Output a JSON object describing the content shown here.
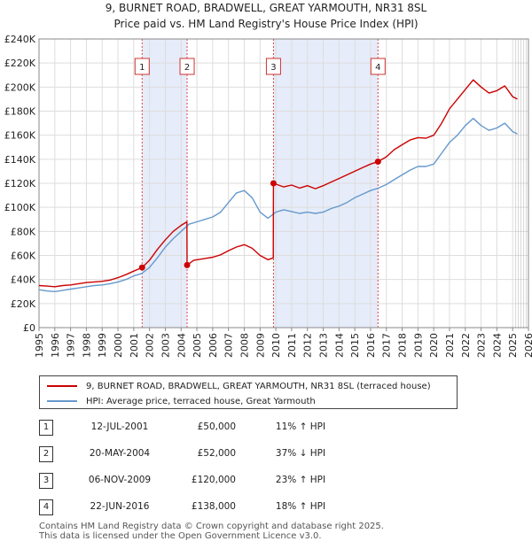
{
  "title_line1": "9, BURNET ROAD, BRADWELL, GREAT YARMOUTH, NR31 8SL",
  "title_line2": "Price paid vs. HM Land Registry's House Price Index (HPI)",
  "chart_data": {
    "type": "line",
    "title": "9, BURNET ROAD, BRADWELL, GREAT YARMOUTH, NR31 8SL",
    "subtitle": "Price paid vs. HM Land Registry's House Price Index (HPI)",
    "xlim": [
      1995,
      2026
    ],
    "ylim": [
      0,
      240000
    ],
    "y_ticks": [
      0,
      20000,
      40000,
      60000,
      80000,
      100000,
      120000,
      140000,
      160000,
      180000,
      200000,
      220000,
      240000
    ],
    "y_tick_labels": [
      "£0",
      "£20K",
      "£40K",
      "£60K",
      "£80K",
      "£100K",
      "£120K",
      "£140K",
      "£160K",
      "£180K",
      "£200K",
      "£220K",
      "£240K"
    ],
    "x_ticks": [
      1995,
      1996,
      1997,
      1998,
      1999,
      2000,
      2001,
      2002,
      2003,
      2004,
      2005,
      2006,
      2007,
      2008,
      2009,
      2010,
      2011,
      2012,
      2013,
      2014,
      2015,
      2016,
      2017,
      2018,
      2019,
      2020,
      2021,
      2022,
      2023,
      2024,
      2025,
      2026
    ],
    "x_tick_labels": [
      "1995",
      "1996",
      "1997",
      "1998",
      "1999",
      "2000",
      "2001",
      "2002",
      "2003",
      "2004",
      "2005",
      "2006",
      "2007",
      "2008",
      "2009",
      "2010",
      "2011",
      "2012",
      "2013",
      "2014",
      "2015",
      "2016",
      "2017",
      "2018",
      "2019",
      "2020",
      "2021",
      "2022",
      "2023",
      "2024",
      "2025",
      "2026"
    ],
    "grid": true,
    "series": [
      {
        "name": "9, BURNET ROAD, BRADWELL, GREAT YARMOUTH, NR31 8SL (terraced house)",
        "color": "#cc0000",
        "points": [
          [
            1995.0,
            35000
          ],
          [
            1995.5,
            34500
          ],
          [
            1996.0,
            34000
          ],
          [
            1996.5,
            35000
          ],
          [
            1997.0,
            35500
          ],
          [
            1997.5,
            36500
          ],
          [
            1998.0,
            37500
          ],
          [
            1998.5,
            38000
          ],
          [
            1999.0,
            38500
          ],
          [
            1999.5,
            39500
          ],
          [
            2000.0,
            41500
          ],
          [
            2000.5,
            44000
          ],
          [
            2001.0,
            47000
          ],
          [
            2001.53,
            50000
          ],
          [
            2002.0,
            56000
          ],
          [
            2002.5,
            65000
          ],
          [
            2003.0,
            73000
          ],
          [
            2003.5,
            80000
          ],
          [
            2004.0,
            85000
          ],
          [
            2004.37,
            88000
          ],
          [
            2004.38,
            52000
          ],
          [
            2004.8,
            56000
          ],
          [
            2005.5,
            57500
          ],
          [
            2006.0,
            58500
          ],
          [
            2006.5,
            60500
          ],
          [
            2007.0,
            64000
          ],
          [
            2007.5,
            67000
          ],
          [
            2008.0,
            69000
          ],
          [
            2008.5,
            66000
          ],
          [
            2009.0,
            60000
          ],
          [
            2009.5,
            56500
          ],
          [
            2009.84,
            58000
          ],
          [
            2009.85,
            120000
          ],
          [
            2010.5,
            117000
          ],
          [
            2011.0,
            118500
          ],
          [
            2011.5,
            116000
          ],
          [
            2012.0,
            118000
          ],
          [
            2012.5,
            115500
          ],
          [
            2013.0,
            118000
          ],
          [
            2013.5,
            121000
          ],
          [
            2014.0,
            124000
          ],
          [
            2014.5,
            127000
          ],
          [
            2015.0,
            130000
          ],
          [
            2015.5,
            133000
          ],
          [
            2016.0,
            136000
          ],
          [
            2016.47,
            138000
          ],
          [
            2017.0,
            142000
          ],
          [
            2017.5,
            148000
          ],
          [
            2018.0,
            152000
          ],
          [
            2018.5,
            156000
          ],
          [
            2019.0,
            158000
          ],
          [
            2019.5,
            157500
          ],
          [
            2020.0,
            160000
          ],
          [
            2020.5,
            170000
          ],
          [
            2021.0,
            182000
          ],
          [
            2021.5,
            190000
          ],
          [
            2022.0,
            198000
          ],
          [
            2022.5,
            206000
          ],
          [
            2023.0,
            200000
          ],
          [
            2023.5,
            195000
          ],
          [
            2024.0,
            197000
          ],
          [
            2024.5,
            201000
          ],
          [
            2025.0,
            192000
          ],
          [
            2025.3,
            190000
          ]
        ]
      },
      {
        "name": "HPI: Average price, terraced house, Great Yarmouth",
        "color": "#6699cc",
        "points": [
          [
            1995.0,
            31500
          ],
          [
            1995.5,
            30500
          ],
          [
            1996.0,
            30000
          ],
          [
            1996.5,
            31000
          ],
          [
            1997.0,
            32000
          ],
          [
            1997.5,
            33000
          ],
          [
            1998.0,
            34000
          ],
          [
            1998.5,
            35000
          ],
          [
            1999.0,
            35500
          ],
          [
            1999.5,
            36500
          ],
          [
            2000.0,
            38000
          ],
          [
            2000.5,
            40000
          ],
          [
            2001.0,
            43000
          ],
          [
            2001.5,
            45000
          ],
          [
            2002.0,
            50000
          ],
          [
            2002.5,
            58000
          ],
          [
            2003.0,
            67000
          ],
          [
            2003.5,
            74000
          ],
          [
            2004.0,
            80000
          ],
          [
            2004.5,
            86000
          ],
          [
            2005.0,
            88000
          ],
          [
            2005.5,
            90000
          ],
          [
            2006.0,
            92000
          ],
          [
            2006.5,
            96000
          ],
          [
            2007.0,
            104000
          ],
          [
            2007.5,
            112000
          ],
          [
            2008.0,
            114000
          ],
          [
            2008.5,
            108000
          ],
          [
            2009.0,
            96000
          ],
          [
            2009.5,
            91000
          ],
          [
            2010.0,
            96000
          ],
          [
            2010.5,
            98000
          ],
          [
            2011.0,
            96500
          ],
          [
            2011.5,
            95000
          ],
          [
            2012.0,
            96000
          ],
          [
            2012.5,
            95000
          ],
          [
            2013.0,
            96000
          ],
          [
            2013.5,
            99000
          ],
          [
            2014.0,
            101000
          ],
          [
            2014.5,
            104000
          ],
          [
            2015.0,
            108000
          ],
          [
            2015.5,
            111000
          ],
          [
            2016.0,
            114000
          ],
          [
            2016.5,
            116000
          ],
          [
            2017.0,
            119000
          ],
          [
            2017.5,
            123000
          ],
          [
            2018.0,
            127000
          ],
          [
            2018.5,
            131000
          ],
          [
            2019.0,
            134000
          ],
          [
            2019.5,
            134000
          ],
          [
            2020.0,
            136000
          ],
          [
            2020.5,
            145000
          ],
          [
            2021.0,
            154000
          ],
          [
            2021.5,
            160000
          ],
          [
            2022.0,
            168000
          ],
          [
            2022.5,
            174000
          ],
          [
            2023.0,
            168000
          ],
          [
            2023.5,
            164000
          ],
          [
            2024.0,
            166000
          ],
          [
            2024.5,
            170000
          ],
          [
            2025.0,
            163000
          ],
          [
            2025.3,
            161000
          ]
        ]
      }
    ],
    "sales": [
      {
        "n": "1",
        "x": 2001.53,
        "y": 50000
      },
      {
        "n": "2",
        "x": 2004.38,
        "y": 52000
      },
      {
        "n": "3",
        "x": 2009.85,
        "y": 120000
      },
      {
        "n": "4",
        "x": 2016.47,
        "y": 138000
      }
    ],
    "shaded_spans": [
      [
        2001.53,
        2004.38
      ],
      [
        2009.85,
        2016.47
      ]
    ],
    "future_from": 2025.2
  },
  "legend": {
    "property": "9, BURNET ROAD, BRADWELL, GREAT YARMOUTH, NR31 8SL (terraced house)",
    "hpi": "HPI: Average price, terraced house, Great Yarmouth"
  },
  "sales_table": [
    {
      "n": "1",
      "date": "12-JUL-2001",
      "price": "£50,000",
      "hpi": "11% ↑ HPI"
    },
    {
      "n": "2",
      "date": "20-MAY-2004",
      "price": "£52,000",
      "hpi": "37% ↓ HPI"
    },
    {
      "n": "3",
      "date": "06-NOV-2009",
      "price": "£120,000",
      "hpi": "23% ↑ HPI"
    },
    {
      "n": "4",
      "date": "22-JUN-2016",
      "price": "£138,000",
      "hpi": "18% ↑ HPI"
    }
  ],
  "footer_line1": "Contains HM Land Registry data © Crown copyright and database right 2025.",
  "footer_line2": "This data is licensed under the Open Government Licence v3.0."
}
